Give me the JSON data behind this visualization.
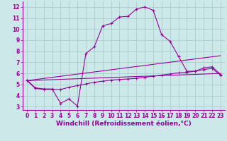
{
  "xlabel": "Windchill (Refroidissement éolien,°C)",
  "bg_color": "#cce8e8",
  "line_color": "#990099",
  "grid_color": "#aacccc",
  "xlim": [
    -0.5,
    23.5
  ],
  "ylim": [
    2.7,
    12.5
  ],
  "xticks": [
    0,
    1,
    2,
    3,
    4,
    5,
    6,
    7,
    8,
    9,
    10,
    11,
    12,
    13,
    14,
    15,
    16,
    17,
    18,
    19,
    20,
    21,
    22,
    23
  ],
  "yticks": [
    3,
    4,
    5,
    6,
    7,
    8,
    9,
    10,
    11,
    12
  ],
  "series1_x": [
    0,
    1,
    2,
    3,
    4,
    5,
    6,
    7,
    8,
    9,
    10,
    11,
    12,
    13,
    14,
    15,
    16,
    17,
    18,
    19,
    20,
    21,
    22,
    23
  ],
  "series1_y": [
    5.4,
    4.7,
    4.6,
    4.6,
    3.3,
    3.7,
    3.05,
    7.8,
    8.4,
    10.3,
    10.5,
    11.1,
    11.15,
    11.8,
    12.0,
    11.7,
    9.5,
    8.9,
    7.55,
    6.2,
    6.2,
    6.5,
    6.6,
    5.9
  ],
  "series2_x": [
    0,
    1,
    2,
    3,
    4,
    5,
    6,
    7,
    8,
    9,
    10,
    11,
    12,
    13,
    14,
    15,
    16,
    17,
    18,
    19,
    20,
    21,
    22,
    23
  ],
  "series2_y": [
    5.35,
    4.65,
    4.55,
    4.55,
    4.55,
    4.75,
    4.9,
    5.05,
    5.2,
    5.3,
    5.4,
    5.45,
    5.5,
    5.55,
    5.65,
    5.75,
    5.85,
    5.95,
    6.05,
    6.1,
    6.2,
    6.35,
    6.45,
    5.85
  ],
  "series3_x": [
    0,
    23
  ],
  "series3_y": [
    5.35,
    6.0
  ],
  "series4_x": [
    0,
    23
  ],
  "series4_y": [
    5.35,
    7.6
  ],
  "xlabel_fontsize": 6.5,
  "tick_fontsize": 5.5
}
